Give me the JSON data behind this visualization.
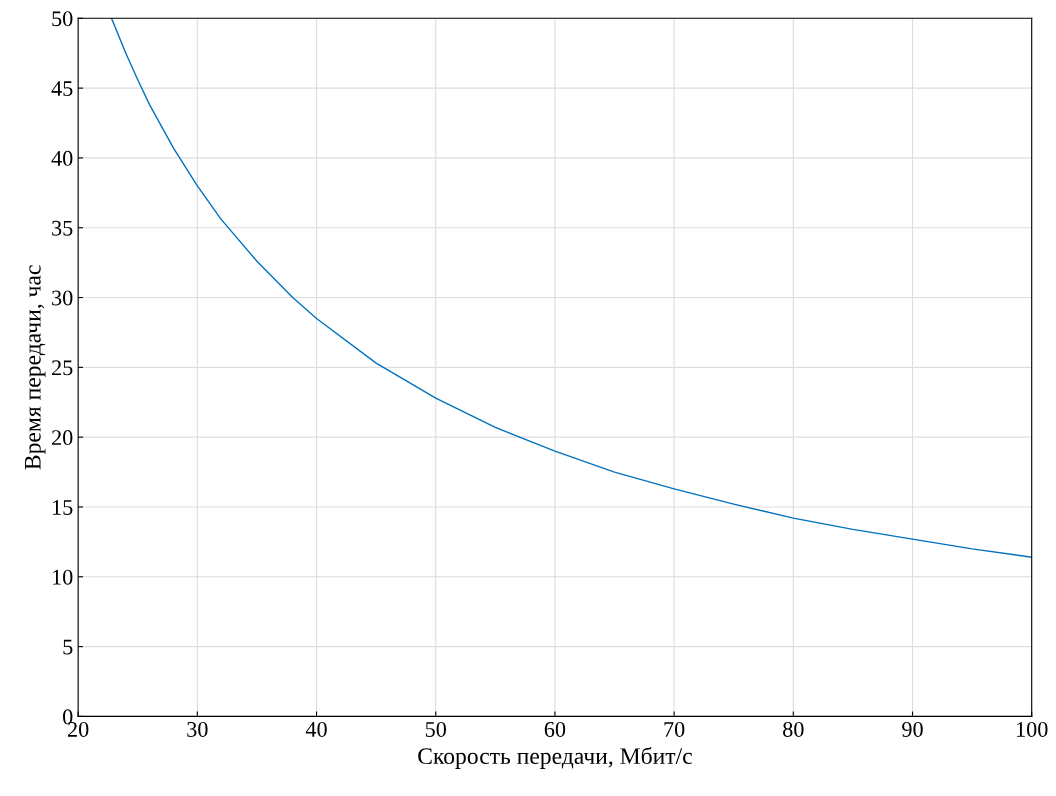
{
  "chart_data": {
    "type": "line",
    "xlabel": "Скорость передачи, Мбит/с",
    "ylabel": "Время передачи, час",
    "series": [
      {
        "color": "#0072bd",
        "x": [
          22.8,
          24,
          25,
          26,
          28,
          30,
          32,
          35,
          38,
          40,
          45,
          50,
          55,
          60,
          65,
          70,
          75,
          80,
          85,
          90,
          95,
          100
        ],
        "values": [
          50,
          47.5,
          45.6,
          43.8,
          40.7,
          38,
          35.6,
          32.6,
          30,
          28.5,
          25.3,
          22.8,
          20.7,
          19,
          17.5,
          16.3,
          15.2,
          14.2,
          13.4,
          12.7,
          12,
          11.4
        ]
      }
    ],
    "xlim": [
      20,
      100
    ],
    "xticks": [
      20,
      30,
      40,
      50,
      60,
      70,
      80,
      90,
      100
    ],
    "ylim": [
      0,
      50
    ],
    "yticks": [
      0,
      5,
      10,
      15,
      20,
      25,
      30,
      35,
      40,
      45,
      50
    ],
    "grid": true,
    "marker": "none",
    "line_style": "solid"
  }
}
